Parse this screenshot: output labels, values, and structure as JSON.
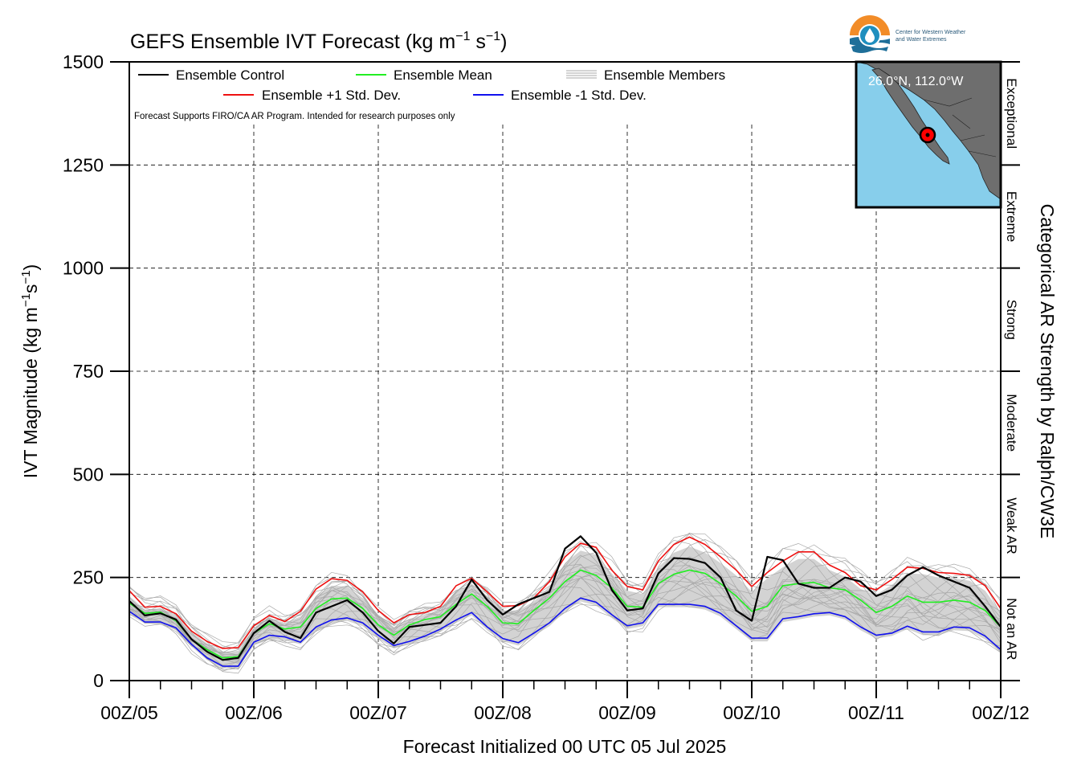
{
  "chart_data": {
    "type": "line",
    "title": "GEFS Ensemble IVT Forecast (kg m",
    "title_sup1": "−1",
    "title_mid": " s",
    "title_sup2": "−1",
    "title_end": ")",
    "xlabel": "Forecast Initialized 00 UTC 05 Jul 2025",
    "ylabel_main": "IVT Magnitude (kg m",
    "ylabel_sup1": "−1",
    "ylabel_mid": "s",
    "ylabel_sup2": "−1",
    "ylabel_end": ")",
    "right_axis_label": "Categorical AR Strength by Ralph/CW3E",
    "ylim": [
      0,
      1500
    ],
    "yticks": [
      0,
      250,
      500,
      750,
      1000,
      1250,
      1500
    ],
    "ytick_labels": [
      "0",
      "250",
      "500",
      "750",
      "1000",
      "1250",
      "1500"
    ],
    "xlim": [
      0,
      168
    ],
    "xticks": [
      0,
      24,
      48,
      72,
      96,
      120,
      144,
      168
    ],
    "xtick_labels": [
      "00Z/05",
      "00Z/06",
      "00Z/07",
      "00Z/08",
      "00Z/09",
      "00Z/10",
      "00Z/11",
      "00Z/12"
    ],
    "grid": true,
    "categories": [
      {
        "label": "Not an AR",
        "from": 0,
        "to": 250
      },
      {
        "label": "Weak AR",
        "from": 250,
        "to": 500
      },
      {
        "label": "Moderate",
        "from": 500,
        "to": 750
      },
      {
        "label": "Strong",
        "from": 750,
        "to": 1000
      },
      {
        "label": "Extreme",
        "from": 1000,
        "to": 1250
      },
      {
        "label": "Exceptional",
        "from": 1250,
        "to": 1500
      }
    ],
    "legend": [
      {
        "label": "Ensemble Control",
        "color": "#000000"
      },
      {
        "label": "Ensemble Mean",
        "color": "#22ee22"
      },
      {
        "label": "Ensemble Members",
        "color": "#aaaaaa"
      },
      {
        "label": "Ensemble +1 Std. Dev.",
        "color": "#ee1111"
      },
      {
        "label": "Ensemble -1 Std. Dev.",
        "color": "#1111ee"
      }
    ],
    "legend_position": "top-left",
    "note": "Forecast Supports FIRO/CA AR Program. Intended for research purposes only",
    "x": [
      0,
      3,
      6,
      9,
      12,
      15,
      18,
      21,
      24,
      27,
      30,
      33,
      36,
      39,
      42,
      45,
      48,
      51,
      54,
      57,
      60,
      63,
      66,
      69,
      72,
      75,
      78,
      81,
      84,
      87,
      90,
      93,
      96,
      99,
      102,
      105,
      108,
      111,
      114,
      117,
      120,
      123,
      126,
      129,
      132,
      135,
      138,
      141,
      144,
      147,
      150,
      153,
      156,
      159,
      162,
      165,
      168
    ],
    "series": [
      {
        "name": "Ensemble Control",
        "color": "#000000",
        "values": [
          193,
          158,
          163,
          148,
          100,
          70,
          50,
          55,
          115,
          145,
          118,
          103,
          165,
          180,
          195,
          165,
          120,
          90,
          130,
          135,
          140,
          180,
          245,
          195,
          160,
          185,
          200,
          215,
          320,
          350,
          310,
          220,
          170,
          175,
          260,
          297,
          295,
          285,
          250,
          170,
          145,
          300,
          292,
          235,
          225,
          225,
          250,
          240,
          205,
          220,
          255,
          275,
          255,
          240,
          225,
          180,
          130
        ]
      },
      {
        "name": "Ensemble Mean",
        "color": "#22ee22",
        "values": [
          188,
          163,
          166,
          145,
          100,
          75,
          55,
          58,
          115,
          138,
          125,
          130,
          175,
          198,
          200,
          175,
          135,
          110,
          135,
          148,
          155,
          185,
          210,
          180,
          140,
          138,
          170,
          200,
          240,
          268,
          255,
          225,
          180,
          178,
          235,
          258,
          268,
          260,
          235,
          205,
          168,
          180,
          230,
          235,
          238,
          225,
          220,
          195,
          165,
          180,
          205,
          190,
          190,
          195,
          190,
          170,
          130
        ]
      },
      {
        "name": "Ensemble +1 Std. Dev.",
        "color": "#ee1111",
        "values": [
          218,
          178,
          180,
          162,
          120,
          95,
          78,
          80,
          133,
          158,
          143,
          168,
          222,
          247,
          243,
          215,
          170,
          140,
          160,
          165,
          180,
          230,
          248,
          215,
          180,
          182,
          200,
          240,
          300,
          333,
          323,
          268,
          228,
          220,
          290,
          330,
          348,
          330,
          300,
          268,
          228,
          262,
          290,
          312,
          312,
          280,
          262,
          230,
          220,
          245,
          275,
          272,
          262,
          260,
          255,
          230,
          175
        ]
      },
      {
        "name": "Ensemble -1 Std. Dev.",
        "color": "#1111ee",
        "values": [
          168,
          142,
          142,
          128,
          88,
          55,
          35,
          35,
          93,
          110,
          106,
          93,
          130,
          147,
          152,
          140,
          110,
          85,
          95,
          108,
          125,
          147,
          165,
          130,
          102,
          92,
          115,
          140,
          175,
          200,
          190,
          160,
          133,
          140,
          185,
          185,
          185,
          180,
          163,
          133,
          103,
          103,
          150,
          155,
          162,
          165,
          155,
          130,
          110,
          115,
          132,
          118,
          118,
          130,
          128,
          108,
          75
        ]
      }
    ],
    "members_band_upper": [
      205,
      172,
      175,
      160,
      118,
      90,
      70,
      72,
      128,
      152,
      140,
      155,
      205,
      230,
      228,
      200,
      160,
      130,
      150,
      160,
      172,
      215,
      235,
      205,
      170,
      170,
      192,
      228,
      285,
      315,
      305,
      260,
      218,
      210,
      275,
      310,
      325,
      310,
      285,
      255,
      215,
      248,
      275,
      295,
      295,
      268,
      252,
      222,
      208,
      232,
      260,
      258,
      250,
      248,
      242,
      218,
      165
    ],
    "members_band_lower": [
      160,
      138,
      138,
      122,
      82,
      50,
      30,
      30,
      85,
      100,
      98,
      88,
      120,
      138,
      145,
      132,
      102,
      78,
      88,
      100,
      118,
      140,
      158,
      122,
      95,
      85,
      108,
      132,
      168,
      192,
      182,
      152,
      125,
      132,
      178,
      178,
      178,
      172,
      155,
      125,
      95,
      95,
      142,
      148,
      155,
      158,
      148,
      122,
      102,
      108,
      125,
      110,
      110,
      122,
      120,
      100,
      68
    ]
  },
  "inset": {
    "coordinate_label": "26.0°N, 112.0°W",
    "ocean_color": "#87ceeb",
    "land_color": "#6e6e6e",
    "marker_color": "#ff0000"
  },
  "logo": {
    "line1": "Center for Western Weather",
    "line2": "and Water Extremes"
  }
}
